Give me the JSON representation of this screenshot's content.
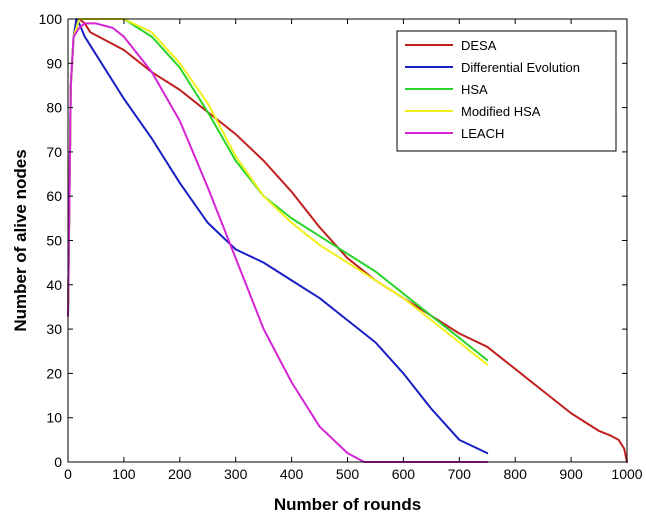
{
  "chart_data": {
    "type": "line",
    "title": "",
    "xlabel": "Number of rounds",
    "ylabel": "Number of alive nodes",
    "xlim": [
      0,
      1000
    ],
    "ylim": [
      0,
      100
    ],
    "xticks": [
      "0",
      "100",
      "200",
      "300",
      "400",
      "500",
      "600",
      "700",
      "800",
      "900",
      "1000"
    ],
    "yticks": [
      "0",
      "10",
      "20",
      "30",
      "40",
      "50",
      "60",
      "70",
      "80",
      "90",
      "100"
    ],
    "grid": false,
    "legend_position": "top-right",
    "series": [
      {
        "name": "DESA",
        "color": "#c0201d",
        "x": [
          0,
          5,
          10,
          20,
          30,
          40,
          100,
          150,
          200,
          250,
          300,
          350,
          400,
          450,
          500,
          550,
          600,
          650,
          700,
          750,
          800,
          850,
          900,
          950,
          970,
          985,
          995,
          1000
        ],
        "y": [
          33,
          85,
          96,
          100,
          99,
          97,
          93,
          88,
          84,
          79,
          74,
          68,
          61,
          53,
          46,
          41,
          37,
          33,
          29,
          26,
          21,
          16,
          11,
          7,
          6,
          5,
          3,
          0
        ]
      },
      {
        "name": "Differential Evolution",
        "color": "#1a1fc4",
        "x": [
          0,
          5,
          10,
          15,
          20,
          30,
          50,
          100,
          150,
          200,
          250,
          300,
          350,
          400,
          450,
          500,
          550,
          600,
          650,
          700,
          750
        ],
        "y": [
          33,
          85,
          96,
          100,
          99,
          96,
          92,
          82,
          73,
          63,
          54,
          48,
          45,
          41,
          37,
          32,
          27,
          20,
          12,
          5,
          2
        ]
      },
      {
        "name": "HSA",
        "color": "#28d429",
        "x": [
          0,
          5,
          10,
          20,
          40,
          100,
          150,
          200,
          250,
          300,
          350,
          400,
          450,
          500,
          550,
          600,
          650,
          700,
          730,
          750
        ],
        "y": [
          33,
          85,
          96,
          100,
          100,
          100,
          96,
          89,
          79,
          68,
          60,
          55,
          51,
          47,
          43,
          38,
          33,
          28,
          25,
          23
        ]
      },
      {
        "name": "Modified HSA",
        "color": "#f0f01e",
        "x": [
          0,
          5,
          10,
          20,
          40,
          100,
          150,
          200,
          250,
          300,
          350,
          400,
          450,
          500,
          550,
          600,
          650,
          700,
          730,
          750
        ],
        "y": [
          33,
          85,
          96,
          100,
          100,
          100,
          97,
          90,
          81,
          69,
          60,
          54,
          49,
          45,
          41,
          37,
          32,
          27,
          24,
          22
        ]
      },
      {
        "name": "LEACH",
        "color": "#d424d4",
        "x": [
          0,
          5,
          10,
          20,
          30,
          50,
          80,
          100,
          150,
          200,
          250,
          300,
          350,
          400,
          450,
          500,
          530,
          550,
          600,
          650,
          700,
          750
        ],
        "y": [
          33,
          85,
          96,
          98,
          99,
          99,
          98,
          96,
          88,
          77,
          62,
          46,
          30,
          18,
          8,
          2,
          0,
          0,
          0,
          0,
          0,
          0
        ]
      }
    ]
  }
}
